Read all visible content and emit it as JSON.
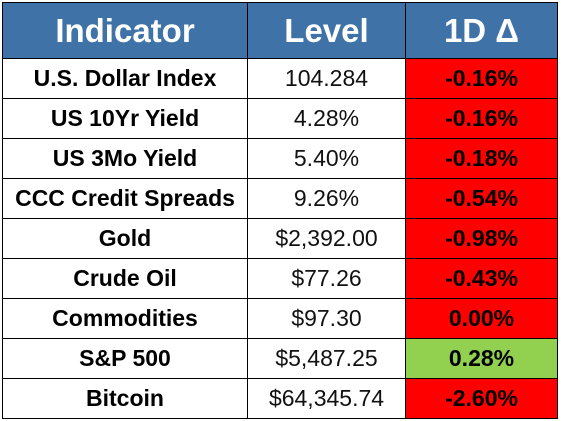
{
  "header": {
    "col1": "Indicator",
    "col2": "Level",
    "col3": "1D Δ"
  },
  "colors": {
    "header_bg": "#3f73a8",
    "negative": "#ff0000",
    "positive": "#92d050"
  },
  "rows": [
    {
      "indicator": "U.S. Dollar Index",
      "level": "104.284",
      "delta": "-0.16%",
      "sign": "neg"
    },
    {
      "indicator": "US 10Yr Yield",
      "level": "4.28%",
      "delta": "-0.16%",
      "sign": "neg"
    },
    {
      "indicator": "US 3Mo Yield",
      "level": "5.40%",
      "delta": "-0.18%",
      "sign": "neg"
    },
    {
      "indicator": "CCC Credit Spreads",
      "level": "9.26%",
      "delta": "-0.54%",
      "sign": "neg"
    },
    {
      "indicator": "Gold",
      "level": "$2,392.00",
      "delta": "-0.98%",
      "sign": "neg"
    },
    {
      "indicator": "Crude Oil",
      "level": "$77.26",
      "delta": "-0.43%",
      "sign": "neg"
    },
    {
      "indicator": "Commodities",
      "level": "$97.30",
      "delta": "0.00%",
      "sign": "zero"
    },
    {
      "indicator": "S&P 500",
      "level": "$5,487.25",
      "delta": "0.28%",
      "sign": "pos"
    },
    {
      "indicator": "Bitcoin",
      "level": "$64,345.74",
      "delta": "-2.60%",
      "sign": "neg"
    }
  ]
}
